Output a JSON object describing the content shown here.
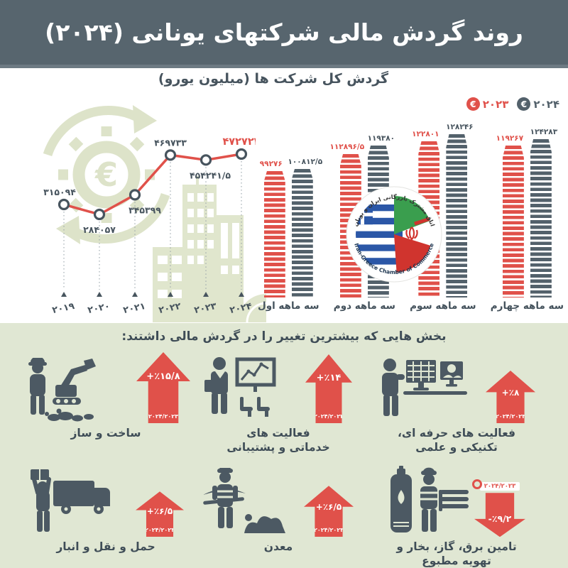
{
  "header": {
    "title": "روند گردش مالی شرکتهای یونانی (۲۰۲۴)"
  },
  "chart_section": {
    "subtitle": "گردش کل شرکت ها (میلیون یورو)",
    "euro_symbol": "€",
    "legend": [
      {
        "label": "۲۰۲۳",
        "year": 2023,
        "color": "#e0514a"
      },
      {
        "label": "۲۰۲۴",
        "year": 2024,
        "color": "#53616b"
      }
    ]
  },
  "chart_data": [
    {
      "type": "line",
      "title": "گردش کل شرکت ها (میلیون یورو)",
      "x": [
        2019,
        2020,
        2021,
        2022,
        2023,
        2024
      ],
      "x_labels": [
        "۲۰۱۹",
        "۲۰۲۰",
        "۲۰۲۱",
        "۲۰۲۲",
        "۲۰۲۳",
        "۲۰۲۴"
      ],
      "values": [
        315094,
        284057,
        345399,
        469733,
        454241.5,
        472722
      ],
      "value_labels": [
        "۳۱۵۰۹۴",
        "۲۸۴۰۵۷",
        "۳۴۵۳۹۹",
        "۴۶۹۷۳۳",
        "۴۵۴۲۴۱/۵",
        "۴۷۲۷۲۲"
      ],
      "label_positions": [
        "above",
        "below",
        "below",
        "above",
        "below",
        "above"
      ],
      "line_color": "#e0514a",
      "highlight_last": true,
      "legend_position": "top-right",
      "grid": false
    },
    {
      "type": "bar",
      "categories": [
        "سه ماهه اول",
        "سه ماهه دوم",
        "سه ماهه سوم",
        "سه ماهه چهارم"
      ],
      "series": [
        {
          "name": "۲۰۲۳",
          "color": "#e0514a",
          "label_color": "#e0514a",
          "values": [
            99276,
            112896.5,
            122801,
            119267
          ],
          "value_labels": [
            "۹۹۲۷۶",
            "۱۱۲۸۹۶/۵",
            "۱۲۲۸۰۱",
            "۱۱۹۲۶۷"
          ]
        },
        {
          "name": "۲۰۲۴",
          "color": "#53616b",
          "label_color": "#47545e",
          "values": [
            100812.5,
            119380,
            128246,
            124283
          ],
          "value_labels": [
            "۱۰۰۸۱۲/۵",
            "۱۱۹۳۸۰",
            "۱۲۸۲۴۶",
            "۱۲۴۲۸۳"
          ]
        }
      ],
      "unit": "میلیون یورو"
    }
  ],
  "logo": {
    "top_text": "اتاق مشترک بازرگانی ایران و یونان",
    "bottom_text": "Iran-Greece Chamber of Commerce"
  },
  "sectors_section": {
    "title": "بخش هایی که بیشترین تغییر را در گردش مالی داشتند:",
    "items": [
      {
        "name": "ساخت و ساز",
        "change": "+٪۱۵/۸",
        "change_value": 15.8,
        "period": "۲۰۲۴/۲۰۲۳",
        "direction": "up"
      },
      {
        "name": "فعالیت های خدماتی و پشتیبانی",
        "change": "+٪۱۴",
        "change_value": 14,
        "period": "۲۰۲۴/۲۰۲۳",
        "direction": "up"
      },
      {
        "name": "فعالیت های حرفه ای، تکنیکی و علمی",
        "change": "+٪۸",
        "change_value": 8,
        "period": "۲۰۲۴/۲۰۲۳",
        "direction": "up"
      },
      {
        "name": "حمل و نقل و انبار",
        "change": "+٪۶/۵",
        "change_value": 6.5,
        "period": "۲۰۲۴/۲۰۲۳",
        "direction": "up"
      },
      {
        "name": "معدن",
        "change": "+٪۶/۵",
        "change_value": 6.5,
        "period": "۲۰۲۴/۲۰۲۳",
        "direction": "up"
      },
      {
        "name": "تامین برق، گاز، بخار و تهویه مطبوع",
        "change": "-٪۹/۲",
        "change_value": -9.2,
        "period": "۲۰۲۴/۲۰۲۳",
        "direction": "down"
      }
    ]
  },
  "colors": {
    "accent_red": "#e0514a",
    "slate": "#53616b",
    "text_slate": "#44525c",
    "header_bg": "#57656e",
    "section_bg": "#e0e7d3",
    "watermark_green": "#dde3c9"
  }
}
